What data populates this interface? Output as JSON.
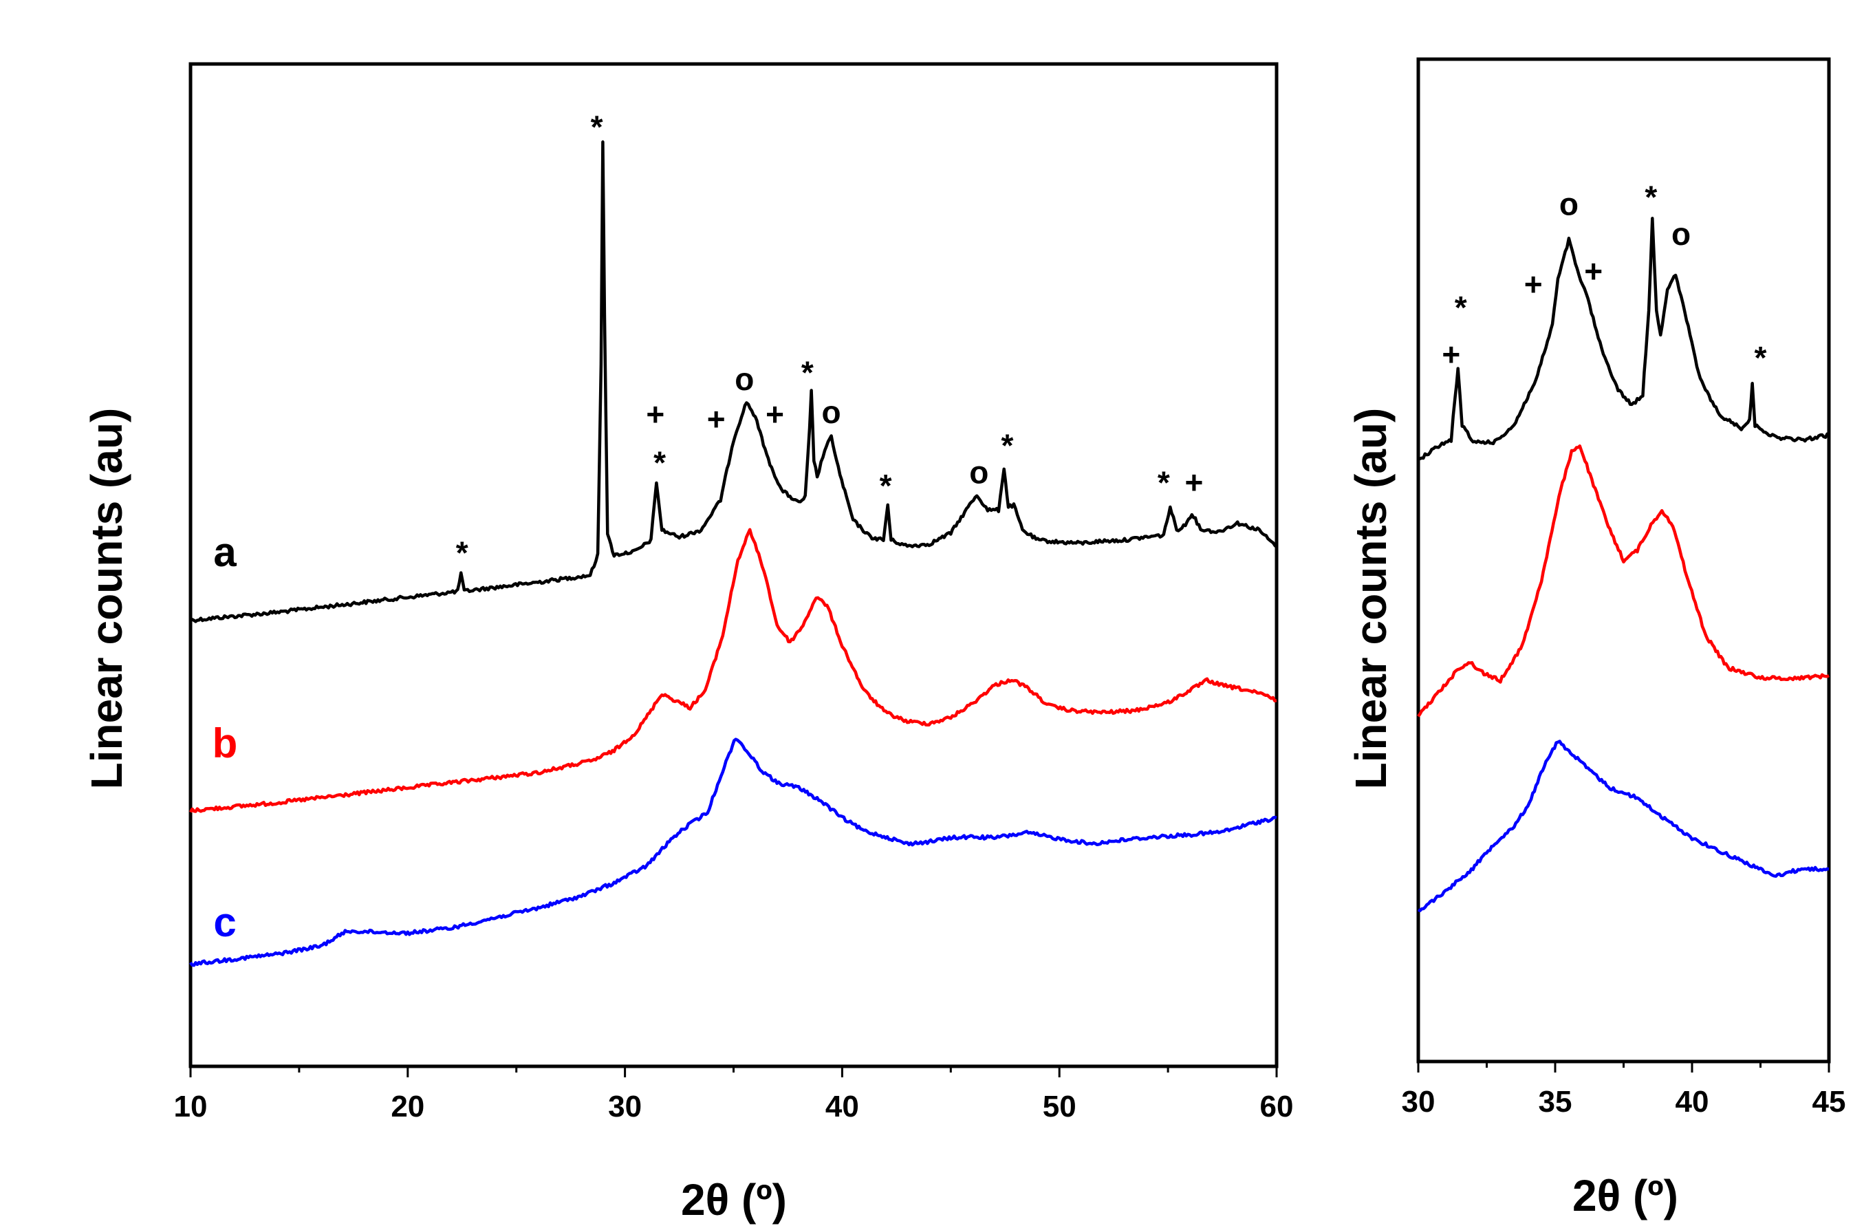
{
  "chart_data": [
    {
      "id": "main",
      "type": "line",
      "title": "",
      "xlabel": "2θ (º)",
      "ylabel": "Linear counts (au)",
      "xlim": [
        10,
        60
      ],
      "ylim": [
        0,
        100
      ],
      "xticks": [
        10,
        20,
        30,
        40,
        50,
        60
      ],
      "grid": false,
      "series": [
        {
          "name": "a",
          "color": "#000000",
          "points": [
            [
              10,
              44.5
            ],
            [
              14,
              45.3
            ],
            [
              18,
              46.3
            ],
            [
              22,
              47.3
            ],
            [
              22.3,
              47.4
            ],
            [
              22.45,
              49.2
            ],
            [
              22.6,
              47.4
            ],
            [
              26,
              48.3
            ],
            [
              28.4,
              49
            ],
            [
              28.75,
              51
            ],
            [
              28.9,
              70
            ],
            [
              28.98,
              92.3
            ],
            [
              29.06,
              75
            ],
            [
              29.2,
              53
            ],
            [
              29.5,
              51
            ],
            [
              30.5,
              51.4
            ],
            [
              31.2,
              52.5
            ],
            [
              31.45,
              58.3
            ],
            [
              31.7,
              53.5
            ],
            [
              32.5,
              52.8
            ],
            [
              33.5,
              53.5
            ],
            [
              34.4,
              56.5
            ],
            [
              35,
              62.5
            ],
            [
              35.2,
              63.8
            ],
            [
              35.6,
              66.3
            ],
            [
              36,
              64.8
            ],
            [
              36.6,
              60.5
            ],
            [
              37.2,
              57.5
            ],
            [
              38,
              56.2
            ],
            [
              38.3,
              56.8
            ],
            [
              38.5,
              63.5
            ],
            [
              38.58,
              67.3
            ],
            [
              38.7,
              60.5
            ],
            [
              38.85,
              58.8
            ],
            [
              39.2,
              61.5
            ],
            [
              39.5,
              62.8
            ],
            [
              39.9,
              59
            ],
            [
              40.5,
              54.5
            ],
            [
              41.3,
              52.8
            ],
            [
              41.9,
              52.5
            ],
            [
              42.1,
              56
            ],
            [
              42.25,
              52.5
            ],
            [
              43,
              51.9
            ],
            [
              44,
              52.1
            ],
            [
              45,
              53.2
            ],
            [
              45.8,
              55.8
            ],
            [
              46.2,
              57
            ],
            [
              46.7,
              55.5
            ],
            [
              47.2,
              55.5
            ],
            [
              47.45,
              59.7
            ],
            [
              47.65,
              55.8
            ],
            [
              47.9,
              56
            ],
            [
              48.3,
              53.5
            ],
            [
              49,
              52.5
            ],
            [
              50,
              52.3
            ],
            [
              51,
              52.2
            ],
            [
              52,
              52.4
            ],
            [
              53,
              52.5
            ],
            [
              54,
              52.8
            ],
            [
              54.8,
              53
            ],
            [
              55.1,
              55.8
            ],
            [
              55.4,
              53.5
            ],
            [
              55.8,
              54
            ],
            [
              56.1,
              55.2
            ],
            [
              56.5,
              53.6
            ],
            [
              57.3,
              53.3
            ],
            [
              58.2,
              54.2
            ],
            [
              59.2,
              53.5
            ],
            [
              60,
              51.8
            ]
          ]
        },
        {
          "name": "b",
          "color": "#ff0000",
          "points": [
            [
              10,
              25.5
            ],
            [
              14,
              26.3
            ],
            [
              18,
              27.3
            ],
            [
              22,
              28.3
            ],
            [
              26,
              29.3
            ],
            [
              28.5,
              30.5
            ],
            [
              29.5,
              31.5
            ],
            [
              30.5,
              33.3
            ],
            [
              31.2,
              35.5
            ],
            [
              31.7,
              37.2
            ],
            [
              32.3,
              36.5
            ],
            [
              33,
              35.8
            ],
            [
              33.7,
              37.5
            ],
            [
              34.5,
              43
            ],
            [
              35.2,
              50.5
            ],
            [
              35.75,
              53.5
            ],
            [
              36.4,
              49.5
            ],
            [
              37,
              44
            ],
            [
              37.6,
              42.3
            ],
            [
              38.2,
              44
            ],
            [
              38.8,
              46.8
            ],
            [
              39.3,
              46
            ],
            [
              40,
              42
            ],
            [
              41,
              37.5
            ],
            [
              42,
              35.3
            ],
            [
              43,
              34.4
            ],
            [
              44,
              34.2
            ],
            [
              45,
              34.8
            ],
            [
              46,
              36.2
            ],
            [
              47,
              38
            ],
            [
              47.8,
              38.6
            ],
            [
              48.5,
              37.8
            ],
            [
              49.5,
              36
            ],
            [
              50.5,
              35.5
            ],
            [
              52,
              35.3
            ],
            [
              53.5,
              35.5
            ],
            [
              55,
              36.3
            ],
            [
              56,
              37.5
            ],
            [
              56.8,
              38.5
            ],
            [
              57.5,
              38
            ],
            [
              58.5,
              37.6
            ],
            [
              59.5,
              37
            ],
            [
              60,
              36.5
            ]
          ]
        },
        {
          "name": "c",
          "color": "#0000ff",
          "points": [
            [
              10,
              10.2
            ],
            [
              14,
              11.2
            ],
            [
              16,
              12
            ],
            [
              17.2,
              13.5
            ],
            [
              18.5,
              13.4
            ],
            [
              20,
              13.3
            ],
            [
              22,
              13.8
            ],
            [
              24,
              14.8
            ],
            [
              26,
              15.8
            ],
            [
              28,
              17
            ],
            [
              29.5,
              18.3
            ],
            [
              31,
              20
            ],
            [
              32.2,
              22.8
            ],
            [
              33,
              24.2
            ],
            [
              33.8,
              25.3
            ],
            [
              34.5,
              29.5
            ],
            [
              35.1,
              32.8
            ],
            [
              35.6,
              31.5
            ],
            [
              36.3,
              29.5
            ],
            [
              37,
              28.3
            ],
            [
              38,
              27.8
            ],
            [
              39,
              26.5
            ],
            [
              40,
              24.8
            ],
            [
              41,
              23.5
            ],
            [
              42,
              22.9
            ],
            [
              43,
              22.2
            ],
            [
              44,
              22.4
            ],
            [
              45,
              22.8
            ],
            [
              46,
              22.9
            ],
            [
              47,
              22.8
            ],
            [
              48.5,
              23.3
            ],
            [
              50,
              22.7
            ],
            [
              51.5,
              22.2
            ],
            [
              53,
              22.6
            ],
            [
              54.5,
              22.9
            ],
            [
              56,
              23.1
            ],
            [
              57.5,
              23.4
            ],
            [
              59,
              24.3
            ],
            [
              60,
              24.8
            ]
          ]
        }
      ],
      "series_labels": [
        "a",
        "b",
        "c"
      ],
      "annotations": [
        {
          "text": "*",
          "x": 22.5,
          "y": 51.5
        },
        {
          "text": "*",
          "x": 28.7,
          "y": 94
        },
        {
          "text": "+",
          "x": 31.4,
          "y": 65
        },
        {
          "text": "*",
          "x": 31.6,
          "y": 60.5
        },
        {
          "text": "+",
          "x": 34.2,
          "y": 64.5
        },
        {
          "text": "o",
          "x": 35.5,
          "y": 68.5
        },
        {
          "text": "+",
          "x": 36.9,
          "y": 65
        },
        {
          "text": "*",
          "x": 38.4,
          "y": 69.5
        },
        {
          "text": "o",
          "x": 39.5,
          "y": 65.2
        },
        {
          "text": "*",
          "x": 42.0,
          "y": 58.2
        },
        {
          "text": "o",
          "x": 46.3,
          "y": 59.2
        },
        {
          "text": "*",
          "x": 47.6,
          "y": 62.2
        },
        {
          "text": "*",
          "x": 54.8,
          "y": 58.5
        },
        {
          "text": "+",
          "x": 56.2,
          "y": 58.2
        }
      ]
    },
    {
      "id": "inset",
      "type": "line",
      "title": "",
      "xlabel": "2θ (º)",
      "ylabel": "Linear counts (au)",
      "xlim": [
        30,
        45
      ],
      "ylim": [
        0,
        100
      ],
      "xticks": [
        30,
        35,
        40,
        45
      ],
      "grid": false,
      "series": [
        {
          "name": "a",
          "color": "#000000",
          "points": [
            [
              30,
              60
            ],
            [
              30.8,
              61.5
            ],
            [
              31.2,
              62
            ],
            [
              31.35,
              66.5
            ],
            [
              31.45,
              69
            ],
            [
              31.6,
              63.5
            ],
            [
              32,
              61.8
            ],
            [
              32.8,
              61.8
            ],
            [
              33.5,
              63.5
            ],
            [
              34.3,
              68
            ],
            [
              34.9,
              73.5
            ],
            [
              35.1,
              78
            ],
            [
              35.3,
              80
            ],
            [
              35.5,
              82
            ],
            [
              35.8,
              79
            ],
            [
              36.2,
              76
            ],
            [
              36.7,
              71
            ],
            [
              37.3,
              67
            ],
            [
              37.8,
              65.5
            ],
            [
              38.2,
              66.5
            ],
            [
              38.42,
              75
            ],
            [
              38.55,
              84
            ],
            [
              38.7,
              75
            ],
            [
              38.85,
              72.5
            ],
            [
              39.1,
              77
            ],
            [
              39.4,
              78.5
            ],
            [
              39.8,
              74
            ],
            [
              40.3,
              68
            ],
            [
              41,
              64.5
            ],
            [
              41.8,
              63.2
            ],
            [
              42.1,
              64
            ],
            [
              42.2,
              67.5
            ],
            [
              42.3,
              63.5
            ],
            [
              43,
              62.3
            ],
            [
              44,
              62
            ],
            [
              45,
              62.5
            ]
          ]
        },
        {
          "name": "b",
          "color": "#ff0000",
          "points": [
            [
              30,
              34.5
            ],
            [
              30.8,
              37
            ],
            [
              31.5,
              39.3
            ],
            [
              31.9,
              39.8
            ],
            [
              32.4,
              38.7
            ],
            [
              33,
              38
            ],
            [
              33.8,
              41.5
            ],
            [
              34.5,
              48
            ],
            [
              35.2,
              57
            ],
            [
              35.6,
              60.8
            ],
            [
              35.9,
              61.5
            ],
            [
              36.4,
              57.5
            ],
            [
              37,
              53
            ],
            [
              37.5,
              50
            ],
            [
              38,
              51
            ],
            [
              38.5,
              53.5
            ],
            [
              38.9,
              55
            ],
            [
              39.3,
              53.5
            ],
            [
              39.8,
              48.5
            ],
            [
              40.5,
              42.5
            ],
            [
              41.3,
              39.3
            ],
            [
              42.5,
              38.3
            ],
            [
              43.5,
              38.2
            ],
            [
              45,
              38.5
            ]
          ]
        },
        {
          "name": "c",
          "color": "#0000ff",
          "points": [
            [
              30,
              15
            ],
            [
              31,
              17
            ],
            [
              32,
              19.3
            ],
            [
              32.8,
              21.8
            ],
            [
              33.5,
              23.5
            ],
            [
              34,
              25.5
            ],
            [
              34.6,
              29.5
            ],
            [
              35.1,
              32
            ],
            [
              35.5,
              31
            ],
            [
              36.2,
              29.2
            ],
            [
              37,
              27.3
            ],
            [
              38,
              26.3
            ],
            [
              39,
              24.2
            ],
            [
              40,
              22.3
            ],
            [
              41,
              21
            ],
            [
              42,
              19.8
            ],
            [
              43,
              18.5
            ],
            [
              44,
              19.2
            ],
            [
              45,
              19.2
            ]
          ]
        }
      ],
      "annotations": [
        {
          "text": "+",
          "x": 31.2,
          "y": 70.5
        },
        {
          "text": "*",
          "x": 31.55,
          "y": 75.5
        },
        {
          "text": "+",
          "x": 34.2,
          "y": 77.5
        },
        {
          "text": "o",
          "x": 35.5,
          "y": 85.5
        },
        {
          "text": "+",
          "x": 36.4,
          "y": 78.8
        },
        {
          "text": "*",
          "x": 38.5,
          "y": 86.5
        },
        {
          "text": "o",
          "x": 39.6,
          "y": 82.5
        },
        {
          "text": "*",
          "x": 42.5,
          "y": 70.5
        }
      ]
    }
  ]
}
